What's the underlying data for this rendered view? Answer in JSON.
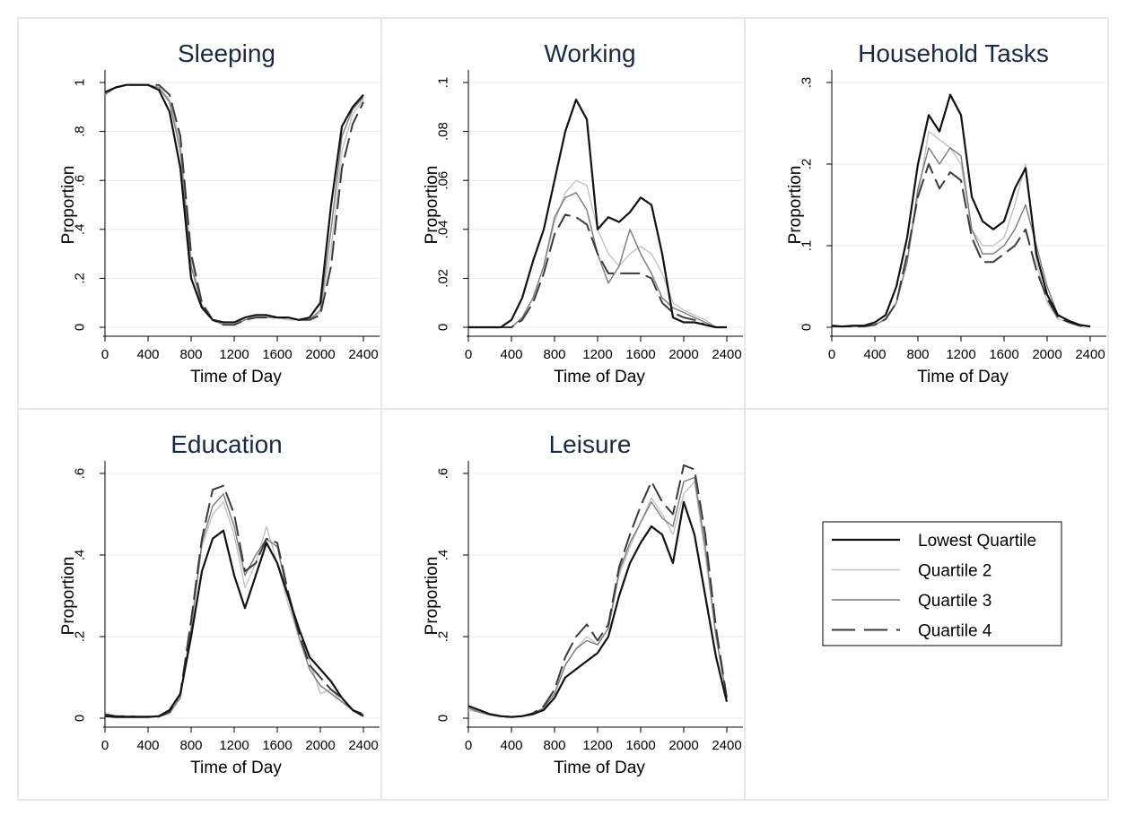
{
  "figure": {
    "background": "#ffffff",
    "panel_border": "#e3e8ee",
    "title_color": "#1a2a44"
  },
  "legend": {
    "entries": [
      {
        "label": "Lowest Quartile",
        "color": "#111111",
        "dash": "solid",
        "width": 2.2
      },
      {
        "label": "Quartile 2",
        "color": "#c2c2c2",
        "dash": "solid",
        "width": 1.4
      },
      {
        "label": "Quartile 3",
        "color": "#7a7a7a",
        "dash": "solid",
        "width": 1.4
      },
      {
        "label": "Quartile 4",
        "color": "#3a3a3a",
        "dash": "long-dash",
        "width": 2.0
      }
    ]
  },
  "chart_data": [
    {
      "type": "line",
      "title": "Sleeping",
      "xlabel": "Time of Day",
      "ylabel": "Proportion",
      "xlim": [
        0,
        2400
      ],
      "ylim": [
        0,
        1
      ],
      "xticks": [
        0,
        400,
        800,
        1200,
        1600,
        2000,
        2400
      ],
      "yticks": [
        {
          "v": 0,
          "label": "0"
        },
        {
          "v": 0.2,
          "label": ".2"
        },
        {
          "v": 0.4,
          "label": ".4"
        },
        {
          "v": 0.6,
          "label": ".6"
        },
        {
          "v": 0.8,
          "label": ".8"
        },
        {
          "v": 1,
          "label": "1"
        }
      ],
      "grid": true,
      "x": [
        0,
        100,
        200,
        300,
        400,
        500,
        600,
        700,
        800,
        900,
        1000,
        1100,
        1200,
        1300,
        1400,
        1500,
        1600,
        1700,
        1800,
        1900,
        2000,
        2100,
        2200,
        2300,
        2400
      ],
      "series": [
        {
          "name": "Lowest Quartile",
          "values": [
            0.96,
            0.98,
            0.99,
            0.99,
            0.99,
            0.97,
            0.88,
            0.65,
            0.2,
            0.08,
            0.03,
            0.02,
            0.02,
            0.04,
            0.05,
            0.05,
            0.04,
            0.04,
            0.03,
            0.04,
            0.1,
            0.5,
            0.82,
            0.9,
            0.95
          ]
        },
        {
          "name": "Quartile 2",
          "values": [
            0.96,
            0.98,
            0.99,
            0.99,
            0.99,
            0.98,
            0.93,
            0.75,
            0.28,
            0.09,
            0.03,
            0.01,
            0.01,
            0.03,
            0.04,
            0.04,
            0.04,
            0.03,
            0.03,
            0.03,
            0.06,
            0.32,
            0.72,
            0.87,
            0.93
          ]
        },
        {
          "name": "Quartile 3",
          "values": [
            0.95,
            0.98,
            0.99,
            0.99,
            0.99,
            0.98,
            0.92,
            0.72,
            0.25,
            0.09,
            0.03,
            0.01,
            0.01,
            0.03,
            0.04,
            0.04,
            0.04,
            0.04,
            0.03,
            0.03,
            0.07,
            0.4,
            0.78,
            0.89,
            0.94
          ]
        },
        {
          "name": "Quartile 4",
          "values": [
            0.96,
            0.98,
            0.99,
            0.99,
            0.99,
            0.99,
            0.95,
            0.78,
            0.3,
            0.1,
            0.03,
            0.01,
            0.01,
            0.03,
            0.04,
            0.04,
            0.04,
            0.04,
            0.03,
            0.03,
            0.05,
            0.25,
            0.65,
            0.83,
            0.92
          ]
        }
      ]
    },
    {
      "type": "line",
      "title": "Working",
      "xlabel": "Time of Day",
      "ylabel": "Proportion",
      "xlim": [
        0,
        2400
      ],
      "ylim": [
        0,
        0.1
      ],
      "xticks": [
        0,
        400,
        800,
        1200,
        1600,
        2000,
        2400
      ],
      "yticks": [
        {
          "v": 0,
          "label": "0"
        },
        {
          "v": 0.02,
          "label": ".02"
        },
        {
          "v": 0.04,
          "label": ".04"
        },
        {
          "v": 0.06,
          "label": ".06"
        },
        {
          "v": 0.08,
          "label": ".08"
        },
        {
          "v": 0.1,
          "label": ".1"
        }
      ],
      "grid": true,
      "x": [
        0,
        100,
        200,
        300,
        400,
        500,
        600,
        700,
        800,
        900,
        1000,
        1100,
        1200,
        1300,
        1400,
        1500,
        1600,
        1700,
        1800,
        1900,
        2000,
        2100,
        2200,
        2300,
        2400
      ],
      "series": [
        {
          "name": "Lowest Quartile",
          "values": [
            0,
            0,
            0,
            0,
            0.003,
            0.012,
            0.027,
            0.04,
            0.06,
            0.08,
            0.093,
            0.085,
            0.04,
            0.045,
            0.043,
            0.047,
            0.053,
            0.05,
            0.03,
            0.004,
            0.002,
            0.002,
            0.001,
            0,
            0
          ]
        },
        {
          "name": "Quartile 2",
          "values": [
            0,
            0,
            0,
            0,
            0,
            0.004,
            0.012,
            0.025,
            0.043,
            0.055,
            0.06,
            0.058,
            0.04,
            0.03,
            0.025,
            0.03,
            0.033,
            0.03,
            0.022,
            0.01,
            0.007,
            0.005,
            0.003,
            0,
            0
          ]
        },
        {
          "name": "Quartile 3",
          "values": [
            0,
            0,
            0,
            0,
            0,
            0.004,
            0.012,
            0.025,
            0.045,
            0.053,
            0.055,
            0.048,
            0.03,
            0.018,
            0.025,
            0.04,
            0.03,
            0.022,
            0.012,
            0.008,
            0.006,
            0.004,
            0.002,
            0,
            0
          ]
        },
        {
          "name": "Quartile 4",
          "values": [
            0,
            0,
            0,
            0,
            0,
            0.003,
            0.01,
            0.022,
            0.038,
            0.046,
            0.045,
            0.042,
            0.03,
            0.022,
            0.022,
            0.022,
            0.022,
            0.02,
            0.01,
            0.006,
            0.004,
            0.003,
            0.001,
            0,
            0
          ]
        }
      ]
    },
    {
      "type": "line",
      "title": "Household Tasks",
      "xlabel": "Time of Day",
      "ylabel": "Proportion",
      "xlim": [
        0,
        2400
      ],
      "ylim": [
        0,
        0.3
      ],
      "xticks": [
        0,
        400,
        800,
        1200,
        1600,
        2000,
        2400
      ],
      "yticks": [
        {
          "v": 0,
          "label": "0"
        },
        {
          "v": 0.1,
          "label": ".1"
        },
        {
          "v": 0.2,
          "label": ".2"
        },
        {
          "v": 0.3,
          "label": ".3"
        }
      ],
      "grid": true,
      "x": [
        0,
        100,
        200,
        300,
        400,
        500,
        600,
        700,
        800,
        900,
        1000,
        1100,
        1200,
        1300,
        1400,
        1500,
        1600,
        1700,
        1800,
        1900,
        2000,
        2100,
        2200,
        2300,
        2400
      ],
      "series": [
        {
          "name": "Lowest Quartile",
          "values": [
            0.002,
            0.001,
            0.002,
            0.002,
            0.006,
            0.015,
            0.05,
            0.11,
            0.2,
            0.26,
            0.24,
            0.285,
            0.26,
            0.16,
            0.13,
            0.12,
            0.13,
            0.17,
            0.195,
            0.09,
            0.04,
            0.015,
            0.008,
            0.003,
            0.001
          ]
        },
        {
          "name": "Quartile 2",
          "values": [
            0.001,
            0.001,
            0.001,
            0.001,
            0.003,
            0.01,
            0.03,
            0.08,
            0.16,
            0.24,
            0.23,
            0.22,
            0.2,
            0.12,
            0.1,
            0.1,
            0.11,
            0.15,
            0.2,
            0.08,
            0.03,
            0.01,
            0.006,
            0.002,
            0.001
          ]
        },
        {
          "name": "Quartile 3",
          "values": [
            0.001,
            0.001,
            0.001,
            0.001,
            0.003,
            0.01,
            0.03,
            0.08,
            0.17,
            0.22,
            0.2,
            0.22,
            0.21,
            0.12,
            0.09,
            0.09,
            0.1,
            0.12,
            0.15,
            0.1,
            0.05,
            0.015,
            0.008,
            0.003,
            0.001
          ]
        },
        {
          "name": "Quartile 4",
          "values": [
            0.001,
            0.001,
            0.001,
            0.001,
            0.003,
            0.01,
            0.03,
            0.09,
            0.16,
            0.2,
            0.17,
            0.19,
            0.18,
            0.11,
            0.08,
            0.08,
            0.09,
            0.1,
            0.12,
            0.07,
            0.035,
            0.012,
            0.006,
            0.002,
            0.001
          ]
        }
      ]
    },
    {
      "type": "line",
      "title": "Education",
      "xlabel": "Time of Day",
      "ylabel": "Proportion",
      "xlim": [
        0,
        2400
      ],
      "ylim": [
        0,
        0.6
      ],
      "xticks": [
        0,
        400,
        800,
        1200,
        1600,
        2000,
        2400
      ],
      "yticks": [
        {
          "v": 0,
          "label": "0"
        },
        {
          "v": 0.2,
          "label": ".2"
        },
        {
          "v": 0.4,
          "label": ".4"
        },
        {
          "v": 0.6,
          "label": ".6"
        }
      ],
      "grid": true,
      "x": [
        0,
        100,
        200,
        300,
        400,
        500,
        600,
        700,
        800,
        900,
        1000,
        1100,
        1200,
        1300,
        1400,
        1500,
        1600,
        1700,
        1800,
        1900,
        2000,
        2100,
        2200,
        2300,
        2400
      ],
      "series": [
        {
          "name": "Lowest Quartile",
          "values": [
            0.005,
            0.003,
            0.003,
            0.003,
            0.003,
            0.005,
            0.02,
            0.06,
            0.2,
            0.36,
            0.44,
            0.46,
            0.35,
            0.27,
            0.35,
            0.43,
            0.38,
            0.3,
            0.22,
            0.15,
            0.12,
            0.09,
            0.05,
            0.02,
            0.005
          ]
        },
        {
          "name": "Quartile 2",
          "values": [
            0.01,
            0.005,
            0.005,
            0.004,
            0.004,
            0.004,
            0.01,
            0.05,
            0.22,
            0.42,
            0.5,
            0.53,
            0.45,
            0.32,
            0.38,
            0.47,
            0.38,
            0.28,
            0.2,
            0.14,
            0.06,
            0.07,
            0.04,
            0.02,
            0.01
          ]
        },
        {
          "name": "Quartile 3",
          "values": [
            0.008,
            0.005,
            0.005,
            0.004,
            0.004,
            0.004,
            0.015,
            0.05,
            0.22,
            0.43,
            0.52,
            0.55,
            0.47,
            0.35,
            0.4,
            0.44,
            0.42,
            0.3,
            0.2,
            0.12,
            0.08,
            0.06,
            0.04,
            0.02,
            0.01
          ]
        },
        {
          "name": "Quartile 4",
          "values": [
            0.01,
            0.005,
            0.005,
            0.004,
            0.004,
            0.004,
            0.015,
            0.06,
            0.24,
            0.44,
            0.56,
            0.57,
            0.5,
            0.36,
            0.38,
            0.44,
            0.43,
            0.31,
            0.21,
            0.13,
            0.1,
            0.07,
            0.05,
            0.02,
            0.01
          ]
        }
      ]
    },
    {
      "type": "line",
      "title": "Leisure",
      "xlabel": "Time of Day",
      "ylabel": "Proportion",
      "xlim": [
        0,
        2400
      ],
      "ylim": [
        0,
        0.6
      ],
      "xticks": [
        0,
        400,
        800,
        1200,
        1600,
        2000,
        2400
      ],
      "yticks": [
        {
          "v": 0,
          "label": "0"
        },
        {
          "v": 0.2,
          "label": ".2"
        },
        {
          "v": 0.4,
          "label": ".4"
        },
        {
          "v": 0.6,
          "label": ".6"
        }
      ],
      "grid": true,
      "x": [
        0,
        100,
        200,
        300,
        400,
        500,
        600,
        700,
        800,
        900,
        1000,
        1100,
        1200,
        1300,
        1400,
        1500,
        1600,
        1700,
        1800,
        1900,
        2000,
        2100,
        2200,
        2300,
        2400
      ],
      "series": [
        {
          "name": "Lowest Quartile",
          "values": [
            0.03,
            0.02,
            0.01,
            0.005,
            0.003,
            0.005,
            0.01,
            0.02,
            0.05,
            0.1,
            0.12,
            0.14,
            0.16,
            0.2,
            0.3,
            0.38,
            0.43,
            0.47,
            0.45,
            0.38,
            0.53,
            0.45,
            0.3,
            0.15,
            0.04
          ]
        },
        {
          "name": "Quartile 2",
          "values": [
            0.02,
            0.015,
            0.008,
            0.004,
            0.003,
            0.005,
            0.012,
            0.025,
            0.06,
            0.13,
            0.17,
            0.2,
            0.18,
            0.22,
            0.35,
            0.42,
            0.48,
            0.54,
            0.5,
            0.45,
            0.55,
            0.58,
            0.4,
            0.2,
            0.05
          ]
        },
        {
          "name": "Quartile 3",
          "values": [
            0.025,
            0.015,
            0.008,
            0.004,
            0.003,
            0.005,
            0.012,
            0.025,
            0.06,
            0.13,
            0.17,
            0.19,
            0.18,
            0.22,
            0.36,
            0.43,
            0.48,
            0.53,
            0.49,
            0.47,
            0.58,
            0.59,
            0.42,
            0.2,
            0.05
          ]
        },
        {
          "name": "Quartile 4",
          "values": [
            0.03,
            0.02,
            0.01,
            0.005,
            0.003,
            0.005,
            0.012,
            0.03,
            0.07,
            0.15,
            0.2,
            0.23,
            0.19,
            0.23,
            0.37,
            0.45,
            0.52,
            0.58,
            0.53,
            0.5,
            0.62,
            0.61,
            0.45,
            0.22,
            0.05
          ]
        }
      ]
    }
  ]
}
